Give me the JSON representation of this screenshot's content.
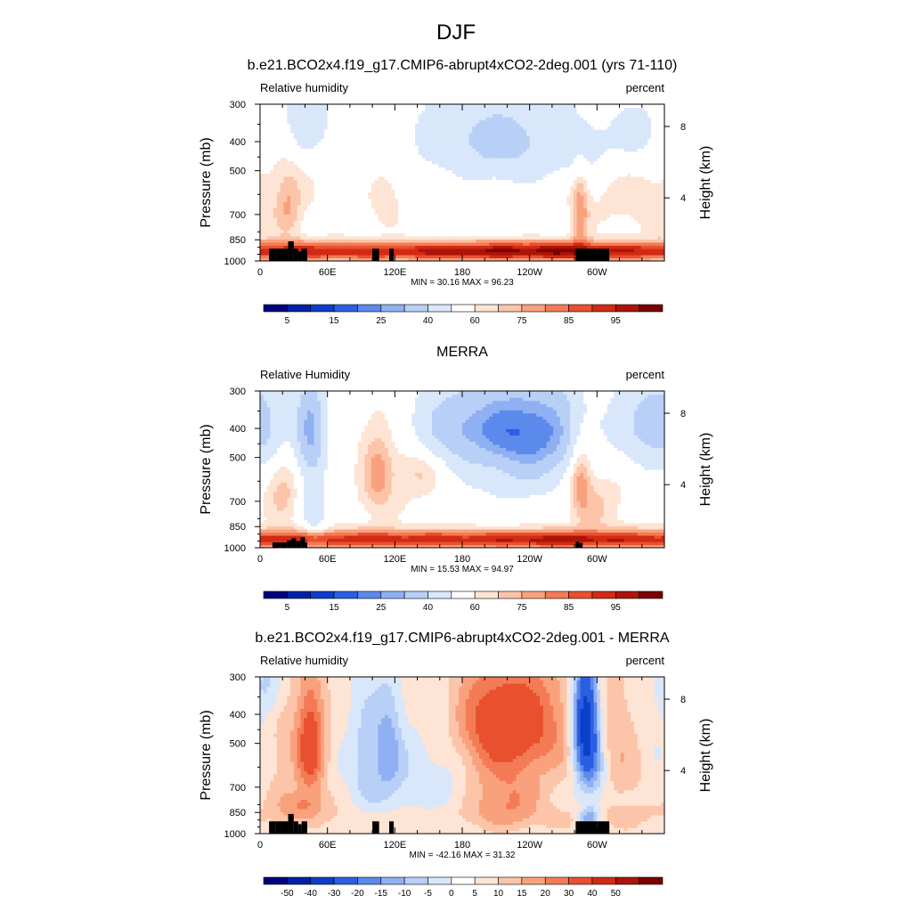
{
  "figure": {
    "title": "DJF"
  },
  "colors": {
    "rh_levels": [
      "#00007f",
      "#0022a6",
      "#0c3ec9",
      "#2a5fe2",
      "#5c8aec",
      "#8fb0f2",
      "#b8cff7",
      "#d9e7fb",
      "#ffffff",
      "#fde4d4",
      "#fcc4a8",
      "#f9a17d",
      "#f37b55",
      "#e8502f",
      "#d12b13",
      "#ac1408",
      "#7a0000"
    ],
    "diff_levels": [
      "#00007f",
      "#0022a6",
      "#0c3ec9",
      "#2a5fe2",
      "#5c8aec",
      "#8fb0f2",
      "#b8cff7",
      "#d9e7fb",
      "#ffffff",
      "#fde4d4",
      "#fcc4a8",
      "#f9a17d",
      "#f37b55",
      "#e8502f",
      "#d12b13",
      "#ac1408",
      "#7a0000"
    ],
    "topo": "#000000"
  },
  "chart_data": [
    {
      "type": "contour",
      "panel_title": "b.e21.BCO2x4.f19_g17.CMIP6-abrupt4xCO2-2deg.001 (yrs 71-110)",
      "left_label": "Relative humidity",
      "right_label": "percent",
      "ylabel": "Pressure (mb)",
      "y2label": "Height (km)",
      "y_ticks": [
        "300",
        "400",
        "500",
        "700",
        "850",
        "1000"
      ],
      "y2_ticks": [
        "8",
        "4"
      ],
      "x_ticks": [
        "0",
        "60E",
        "120E",
        "180",
        "120W",
        "60W"
      ],
      "stats": "MIN =  30.16  MAX =  96.23",
      "colorbar_labels": [
        "5",
        "15",
        "25",
        "40",
        "60",
        "75",
        "85",
        "95"
      ],
      "colorbar_levels": [
        5,
        10,
        15,
        20,
        25,
        30,
        40,
        50,
        60,
        65,
        70,
        75,
        80,
        85,
        90,
        95
      ],
      "scale": "rh",
      "min": 30.16,
      "max": 96.23,
      "xlim": [
        0,
        360
      ],
      "ylim_mb": [
        1000,
        300
      ],
      "base": 56,
      "features": [
        {
          "x": 0,
          "p": 600,
          "sx": 40,
          "sp": 180,
          "a": 6
        },
        {
          "x": 25,
          "p": 650,
          "sx": 8,
          "sp": 120,
          "a": 10
        },
        {
          "x": 40,
          "p": 330,
          "sx": 12,
          "sp": 70,
          "a": -12
        },
        {
          "x": 70,
          "p": 350,
          "sx": 40,
          "sp": 80,
          "a": -4
        },
        {
          "x": 112,
          "p": 640,
          "sx": 10,
          "sp": 100,
          "a": 8
        },
        {
          "x": 180,
          "p": 380,
          "sx": 35,
          "sp": 80,
          "a": -8
        },
        {
          "x": 232,
          "p": 400,
          "sx": 45,
          "sp": 100,
          "a": -16
        },
        {
          "x": 285,
          "p": 700,
          "sx": 5,
          "sp": 150,
          "a": 16
        },
        {
          "x": 295,
          "p": 450,
          "sx": 15,
          "sp": 80,
          "a": -6
        },
        {
          "x": 340,
          "p": 380,
          "sx": 20,
          "sp": 80,
          "a": -10
        },
        {
          "x": 300,
          "p": 560,
          "sx": 30,
          "sp": 120,
          "a": 4
        }
      ],
      "bl": {
        "amp": 32,
        "p0": 925,
        "sp": 70,
        "lon_boost": [
          [
            200,
            60,
            6
          ],
          [
            262,
            40,
            6
          ]
        ]
      },
      "topo": [
        [
          8,
          14,
          910
        ],
        [
          14,
          19,
          910
        ],
        [
          19,
          25,
          910
        ],
        [
          25,
          30,
          860
        ],
        [
          30,
          34,
          910
        ],
        [
          34,
          37,
          930
        ],
        [
          37,
          42,
          910
        ],
        [
          100,
          106,
          910
        ],
        [
          115,
          119,
          910
        ],
        [
          281,
          300,
          910
        ],
        [
          300,
          311,
          910
        ]
      ]
    },
    {
      "type": "contour",
      "panel_title": "MERRA",
      "left_label": "Relative Humidity",
      "right_label": "percent",
      "ylabel": "Pressure (mb)",
      "y2label": "Height (km)",
      "y_ticks": [
        "300",
        "400",
        "500",
        "700",
        "850",
        "1000"
      ],
      "y2_ticks": [
        "8",
        "4"
      ],
      "x_ticks": [
        "0",
        "60E",
        "120E",
        "180",
        "120W",
        "60W"
      ],
      "stats": "MIN =  15.53  MAX =  94.97",
      "colorbar_labels": [
        "5",
        "15",
        "25",
        "40",
        "60",
        "75",
        "85",
        "95"
      ],
      "colorbar_levels": [
        5,
        10,
        15,
        20,
        25,
        30,
        40,
        50,
        60,
        65,
        70,
        75,
        80,
        85,
        90,
        95
      ],
      "scale": "rh",
      "min": 15.53,
      "max": 94.97,
      "xlim": [
        0,
        360
      ],
      "ylim_mb": [
        1000,
        300
      ],
      "base": 58,
      "features": [
        {
          "x": 45,
          "p": 400,
          "sx": 10,
          "sp": 120,
          "a": -28
        },
        {
          "x": 48,
          "p": 750,
          "sx": 8,
          "sp": 150,
          "a": -14
        },
        {
          "x": 20,
          "p": 620,
          "sx": 10,
          "sp": 120,
          "a": 10
        },
        {
          "x": 105,
          "p": 560,
          "sx": 10,
          "sp": 140,
          "a": 14
        },
        {
          "x": 140,
          "p": 550,
          "sx": 14,
          "sp": 80,
          "a": 10
        },
        {
          "x": 175,
          "p": 390,
          "sx": 30,
          "sp": 90,
          "a": -22
        },
        {
          "x": 242,
          "p": 410,
          "sx": 35,
          "sp": 120,
          "a": -36
        },
        {
          "x": 220,
          "p": 640,
          "sx": 40,
          "sp": 110,
          "a": -6
        },
        {
          "x": 285,
          "p": 560,
          "sx": 7,
          "sp": 130,
          "a": 18
        },
        {
          "x": 300,
          "p": 700,
          "sx": 15,
          "sp": 140,
          "a": 8
        },
        {
          "x": 350,
          "p": 380,
          "sx": 22,
          "sp": 110,
          "a": -22
        },
        {
          "x": 10,
          "p": 400,
          "sx": 12,
          "sp": 80,
          "a": -6
        }
      ],
      "bl": {
        "amp": 30,
        "p0": 935,
        "sp": 65,
        "lon_boost": [
          [
            260,
            40,
            5
          ]
        ]
      },
      "topo": [
        [
          11,
          18,
          960
        ],
        [
          18,
          24,
          960
        ],
        [
          24,
          28,
          945
        ],
        [
          28,
          32,
          930
        ],
        [
          32,
          36,
          950
        ],
        [
          36,
          40,
          920
        ],
        [
          40,
          42,
          960
        ],
        [
          281,
          284,
          955
        ],
        [
          284,
          287,
          965
        ]
      ]
    },
    {
      "type": "contour",
      "panel_title": "b.e21.BCO2x4.f19_g17.CMIP6-abrupt4xCO2-2deg.001 - MERRA",
      "left_label": "Relative humidity",
      "right_label": "percent",
      "ylabel": "Pressure (mb)",
      "y2label": "Height (km)",
      "y_ticks": [
        "300",
        "400",
        "500",
        "700",
        "850",
        "1000"
      ],
      "y2_ticks": [
        "8",
        "4"
      ],
      "x_ticks": [
        "0",
        "60E",
        "120E",
        "180",
        "120W",
        "60W"
      ],
      "stats": "MIN = -42.16  MAX =  31.32",
      "colorbar_labels": [
        "-50",
        "-40",
        "-30",
        "-20",
        "-15",
        "-10",
        "-5",
        "0",
        "5",
        "10",
        "15",
        "20",
        "30",
        "40",
        "50"
      ],
      "colorbar_levels": [
        -50,
        -40,
        -30,
        -20,
        -15,
        -10,
        -5,
        0,
        5,
        10,
        15,
        20,
        30,
        40,
        50
      ],
      "scale": "diff",
      "min": -42.16,
      "max": 31.32,
      "xlim": [
        0,
        360
      ],
      "ylim_mb": [
        1000,
        300
      ],
      "base": 2,
      "features": [
        {
          "x": 45,
          "p": 500,
          "sx": 9,
          "sp": 160,
          "a": 24
        },
        {
          "x": 20,
          "p": 520,
          "sx": 12,
          "sp": 180,
          "a": 6
        },
        {
          "x": 36,
          "p": 800,
          "sx": 15,
          "sp": 60,
          "a": 10
        },
        {
          "x": 95,
          "p": 560,
          "sx": 12,
          "sp": 200,
          "a": -8
        },
        {
          "x": 115,
          "p": 500,
          "sx": 8,
          "sp": 150,
          "a": -10
        },
        {
          "x": 130,
          "p": 620,
          "sx": 25,
          "sp": 200,
          "a": -6
        },
        {
          "x": 170,
          "p": 500,
          "sx": 15,
          "sp": 180,
          "a": -6
        },
        {
          "x": 220,
          "p": 430,
          "sx": 38,
          "sp": 140,
          "a": 26
        },
        {
          "x": 220,
          "p": 780,
          "sx": 22,
          "sp": 110,
          "a": 12
        },
        {
          "x": 290,
          "p": 420,
          "sx": 8,
          "sp": 130,
          "a": -44
        },
        {
          "x": 296,
          "p": 620,
          "sx": 10,
          "sp": 120,
          "a": -14
        },
        {
          "x": 293,
          "p": 880,
          "sx": 6,
          "sp": 50,
          "a": -18
        },
        {
          "x": 320,
          "p": 520,
          "sx": 20,
          "sp": 200,
          "a": 8
        },
        {
          "x": 350,
          "p": 450,
          "sx": 20,
          "sp": 150,
          "a": -4
        },
        {
          "x": 8,
          "p": 320,
          "sx": 10,
          "sp": 60,
          "a": -8
        }
      ],
      "bl": {
        "amp": 3,
        "p0": 880,
        "sp": 80,
        "lon_boost": []
      },
      "topo": [
        [
          8,
          14,
          910
        ],
        [
          14,
          19,
          910
        ],
        [
          19,
          25,
          910
        ],
        [
          25,
          30,
          860
        ],
        [
          30,
          34,
          910
        ],
        [
          34,
          37,
          930
        ],
        [
          37,
          42,
          910
        ],
        [
          100,
          106,
          910
        ],
        [
          115,
          119,
          910
        ],
        [
          281,
          300,
          910
        ],
        [
          300,
          311,
          910
        ]
      ]
    }
  ]
}
